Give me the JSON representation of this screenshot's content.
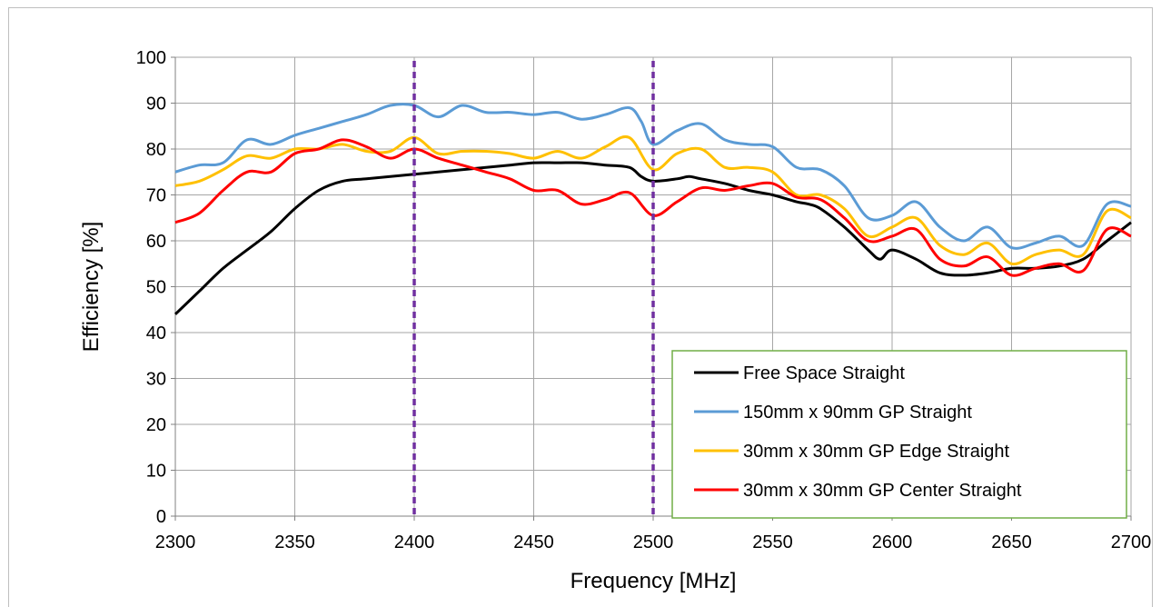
{
  "chart_data": {
    "type": "line",
    "title": "",
    "xlabel": "Frequency [MHz]",
    "ylabel": "Efficiency [%]",
    "xlim": [
      2300,
      2700
    ],
    "ylim": [
      0,
      100
    ],
    "x_ticks": [
      2300,
      2350,
      2400,
      2450,
      2500,
      2550,
      2600,
      2650,
      2700
    ],
    "y_ticks": [
      0,
      10,
      20,
      30,
      40,
      50,
      60,
      70,
      80,
      90,
      100
    ],
    "grid": true,
    "legend_position": "bottom-right",
    "reference_lines": [
      {
        "x": 2400,
        "color": "#7030a0",
        "style": "dashed"
      },
      {
        "x": 2500,
        "color": "#7030a0",
        "style": "dashed"
      }
    ],
    "series": [
      {
        "name": "Free Space Straight",
        "color": "#000000",
        "points": [
          [
            2300,
            44
          ],
          [
            2310,
            49
          ],
          [
            2320,
            54
          ],
          [
            2330,
            58
          ],
          [
            2340,
            62
          ],
          [
            2350,
            67
          ],
          [
            2360,
            71
          ],
          [
            2370,
            73
          ],
          [
            2380,
            73.5
          ],
          [
            2390,
            74
          ],
          [
            2400,
            74.5
          ],
          [
            2410,
            75
          ],
          [
            2420,
            75.5
          ],
          [
            2430,
            76
          ],
          [
            2440,
            76.5
          ],
          [
            2450,
            77
          ],
          [
            2460,
            77
          ],
          [
            2470,
            77
          ],
          [
            2480,
            76.5
          ],
          [
            2490,
            76
          ],
          [
            2495,
            74
          ],
          [
            2500,
            73
          ],
          [
            2510,
            73.5
          ],
          [
            2515,
            74
          ],
          [
            2520,
            73.5
          ],
          [
            2530,
            72.5
          ],
          [
            2540,
            71
          ],
          [
            2550,
            70
          ],
          [
            2560,
            68.5
          ],
          [
            2565,
            68
          ],
          [
            2570,
            67
          ],
          [
            2580,
            63
          ],
          [
            2590,
            58
          ],
          [
            2595,
            56
          ],
          [
            2600,
            58
          ],
          [
            2610,
            56
          ],
          [
            2620,
            53
          ],
          [
            2630,
            52.5
          ],
          [
            2640,
            53
          ],
          [
            2650,
            54
          ],
          [
            2660,
            54
          ],
          [
            2670,
            54.5
          ],
          [
            2680,
            56
          ],
          [
            2690,
            60
          ],
          [
            2700,
            64
          ]
        ]
      },
      {
        "name": "150mm x 90mm GP Straight",
        "color": "#5b9bd5",
        "points": [
          [
            2300,
            75
          ],
          [
            2310,
            76.5
          ],
          [
            2320,
            77
          ],
          [
            2330,
            82
          ],
          [
            2340,
            81
          ],
          [
            2350,
            83
          ],
          [
            2360,
            84.5
          ],
          [
            2370,
            86
          ],
          [
            2380,
            87.5
          ],
          [
            2390,
            89.5
          ],
          [
            2400,
            89.5
          ],
          [
            2410,
            87
          ],
          [
            2420,
            89.5
          ],
          [
            2430,
            88
          ],
          [
            2440,
            88
          ],
          [
            2450,
            87.5
          ],
          [
            2460,
            88
          ],
          [
            2470,
            86.5
          ],
          [
            2480,
            87.5
          ],
          [
            2490,
            89
          ],
          [
            2495,
            86
          ],
          [
            2500,
            81
          ],
          [
            2510,
            84
          ],
          [
            2520,
            85.5
          ],
          [
            2530,
            82
          ],
          [
            2540,
            81
          ],
          [
            2550,
            80.5
          ],
          [
            2560,
            76
          ],
          [
            2570,
            75.5
          ],
          [
            2580,
            72
          ],
          [
            2590,
            65
          ],
          [
            2600,
            65.5
          ],
          [
            2610,
            68.5
          ],
          [
            2620,
            63
          ],
          [
            2630,
            60
          ],
          [
            2640,
            63
          ],
          [
            2650,
            58.5
          ],
          [
            2660,
            59.5
          ],
          [
            2670,
            61
          ],
          [
            2680,
            59
          ],
          [
            2690,
            68
          ],
          [
            2700,
            67.5
          ]
        ]
      },
      {
        "name": "30mm x 30mm GP Edge Straight",
        "color": "#ffc000",
        "points": [
          [
            2300,
            72
          ],
          [
            2310,
            73
          ],
          [
            2320,
            75.5
          ],
          [
            2330,
            78.5
          ],
          [
            2340,
            78
          ],
          [
            2350,
            80
          ],
          [
            2360,
            80
          ],
          [
            2370,
            81
          ],
          [
            2380,
            79.5
          ],
          [
            2390,
            79.5
          ],
          [
            2400,
            82.5
          ],
          [
            2410,
            79
          ],
          [
            2420,
            79.5
          ],
          [
            2430,
            79.5
          ],
          [
            2440,
            79
          ],
          [
            2450,
            78
          ],
          [
            2460,
            79.5
          ],
          [
            2470,
            78
          ],
          [
            2480,
            80.5
          ],
          [
            2490,
            82.5
          ],
          [
            2500,
            75.5
          ],
          [
            2510,
            79
          ],
          [
            2520,
            80
          ],
          [
            2530,
            76
          ],
          [
            2540,
            76
          ],
          [
            2550,
            75
          ],
          [
            2560,
            70
          ],
          [
            2570,
            70
          ],
          [
            2580,
            67
          ],
          [
            2590,
            61
          ],
          [
            2600,
            63
          ],
          [
            2610,
            65
          ],
          [
            2620,
            59
          ],
          [
            2630,
            57
          ],
          [
            2640,
            59.5
          ],
          [
            2650,
            55
          ],
          [
            2660,
            57
          ],
          [
            2670,
            58
          ],
          [
            2680,
            57
          ],
          [
            2690,
            66.5
          ],
          [
            2700,
            65
          ]
        ]
      },
      {
        "name": "30mm x 30mm GP Center Straight",
        "color": "#ff0000",
        "points": [
          [
            2300,
            64
          ],
          [
            2310,
            66
          ],
          [
            2320,
            71
          ],
          [
            2330,
            75
          ],
          [
            2340,
            75
          ],
          [
            2350,
            79
          ],
          [
            2360,
            80
          ],
          [
            2370,
            82
          ],
          [
            2380,
            80.5
          ],
          [
            2390,
            78
          ],
          [
            2400,
            80
          ],
          [
            2410,
            78
          ],
          [
            2420,
            76.5
          ],
          [
            2430,
            75
          ],
          [
            2440,
            73.5
          ],
          [
            2450,
            71
          ],
          [
            2460,
            71
          ],
          [
            2470,
            68
          ],
          [
            2480,
            69
          ],
          [
            2490,
            70.5
          ],
          [
            2500,
            65.5
          ],
          [
            2510,
            68.5
          ],
          [
            2520,
            71.5
          ],
          [
            2530,
            71
          ],
          [
            2540,
            72
          ],
          [
            2550,
            72.5
          ],
          [
            2560,
            69.5
          ],
          [
            2570,
            69
          ],
          [
            2580,
            65
          ],
          [
            2590,
            60
          ],
          [
            2600,
            61
          ],
          [
            2610,
            62.5
          ],
          [
            2620,
            56
          ],
          [
            2630,
            54.5
          ],
          [
            2640,
            56.5
          ],
          [
            2650,
            52.5
          ],
          [
            2660,
            54
          ],
          [
            2670,
            55
          ],
          [
            2680,
            53.5
          ],
          [
            2690,
            62.5
          ],
          [
            2700,
            61
          ]
        ]
      }
    ]
  }
}
